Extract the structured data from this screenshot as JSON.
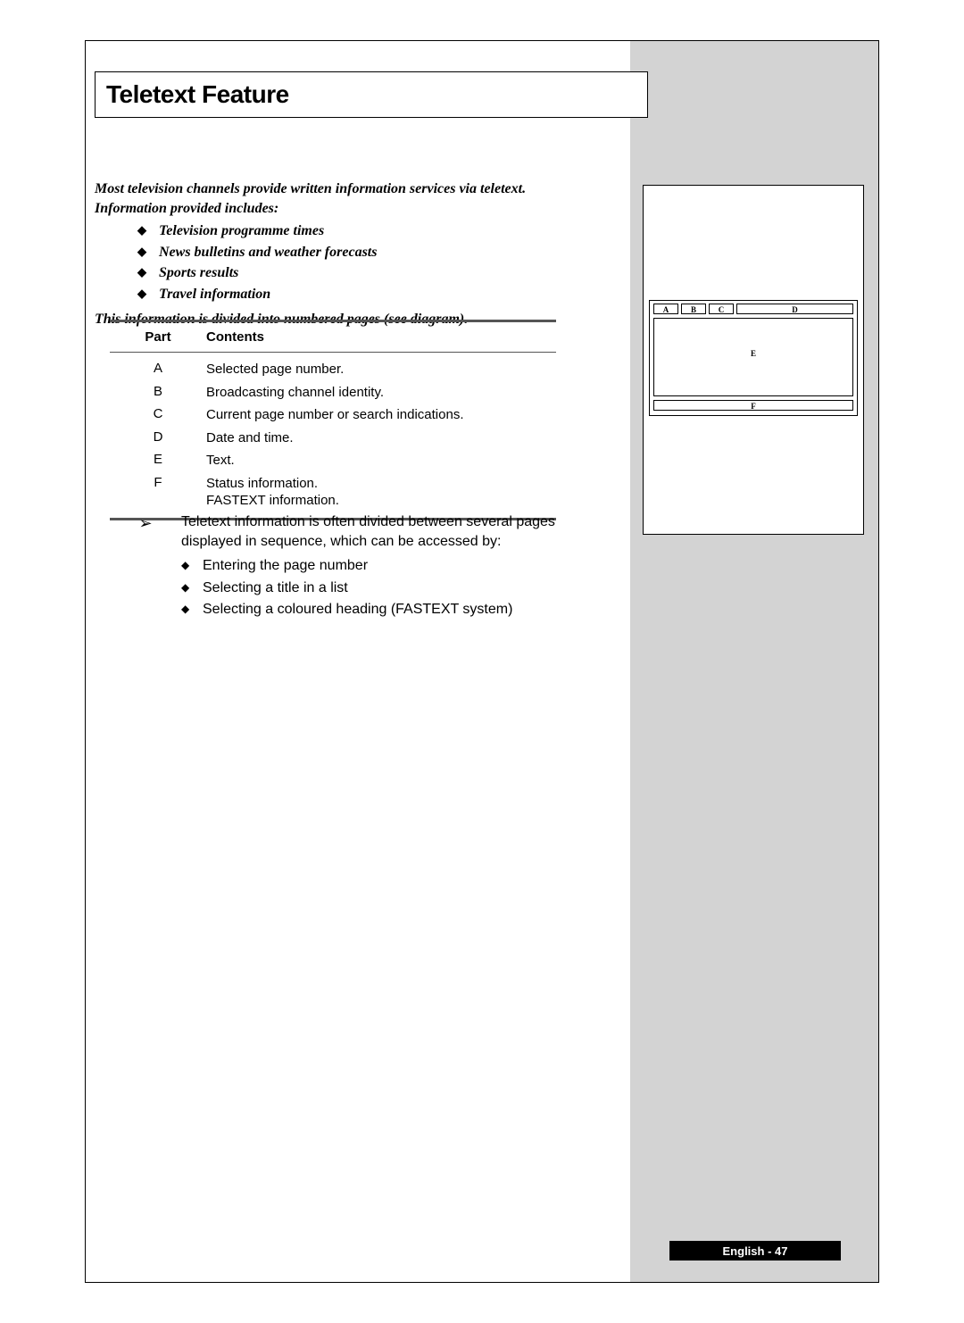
{
  "title": "Teletext Feature",
  "intro": {
    "para1": "Most television channels provide written information services via teletext. Information provided includes:",
    "items": [
      "Television programme times",
      "News bulletins and weather forecasts",
      "Sports results",
      "Travel information"
    ],
    "para2": "This information is divided into numbered pages (see diagram)."
  },
  "table": {
    "header": {
      "col1": "Part",
      "col2": "Contents"
    },
    "rows": [
      {
        "part": "A",
        "contents": "Selected page number."
      },
      {
        "part": "B",
        "contents": "Broadcasting channel identity."
      },
      {
        "part": "C",
        "contents": "Current page number or search indications."
      },
      {
        "part": "D",
        "contents": "Date and time."
      },
      {
        "part": "E",
        "contents": "Text."
      },
      {
        "part": "F",
        "contents": "Status information.\nFASTEXT information."
      }
    ]
  },
  "note": {
    "bullet": "➢",
    "text": "Teletext information is often divided between several pages displayed in sequence, which can be accessed by:",
    "subs": [
      "Entering the page number",
      "Selecting a title in a list",
      "Selecting a coloured heading (FASTEXT system)"
    ]
  },
  "diagram": {
    "A": "A",
    "B": "B",
    "C": "C",
    "D": "D",
    "E": "E",
    "F": "F"
  },
  "footer": "English - 47"
}
